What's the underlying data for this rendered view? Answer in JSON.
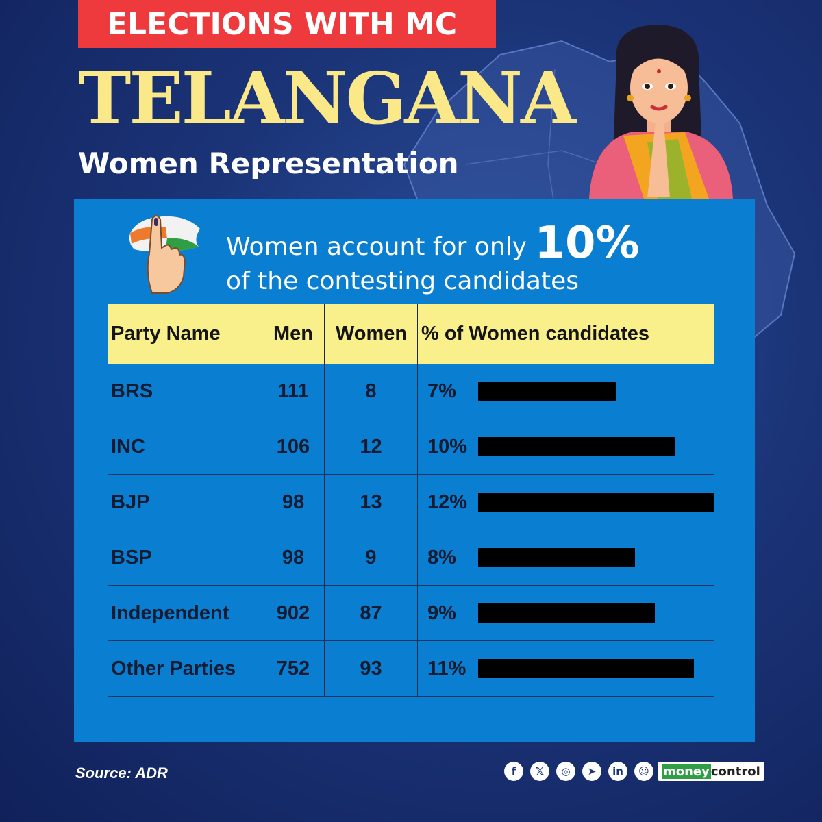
{
  "header": {
    "banner": "ELECTIONS WITH MC",
    "title": "TELANGANA",
    "subtitle": "Women Representation"
  },
  "headline": {
    "prefix": "Women account for only",
    "highlight": "10%",
    "suffix": "of the contesting candidates"
  },
  "table": {
    "columns": [
      "Party Name",
      "Men",
      "Women",
      "% of Women candidates"
    ],
    "rows": [
      {
        "party": "BRS",
        "men": "111",
        "women": "8",
        "pct_label": "7%"
      },
      {
        "party": "INC",
        "men": "106",
        "women": "12",
        "pct_label": "10%"
      },
      {
        "party": "BJP",
        "men": "98",
        "women": "13",
        "pct_label": "12%"
      },
      {
        "party": "BSP",
        "men": "98",
        "women": "9",
        "pct_label": "8%"
      },
      {
        "party": "Independent",
        "men": "902",
        "women": "87",
        "pct_label": "9%"
      },
      {
        "party": "Other Parties",
        "men": "752",
        "women": "93",
        "pct_label": "11%"
      }
    ]
  },
  "chart_data": {
    "type": "bar",
    "orientation": "horizontal",
    "categories": [
      "BRS",
      "INC",
      "BJP",
      "BSP",
      "Independent",
      "Other Parties"
    ],
    "values": [
      7,
      10,
      12,
      8,
      9,
      11
    ],
    "title": "% of Women candidates",
    "xlim": [
      0,
      12
    ],
    "bar_color": "#000000"
  },
  "footer": {
    "source": "Source: ADR",
    "brand_part1": "money",
    "brand_part2": "control",
    "social_icons": [
      "facebook-icon",
      "x-icon",
      "instagram-icon",
      "telegram-icon",
      "linkedin-icon",
      "snapchat-icon"
    ]
  },
  "colors": {
    "banner": "#ee3a3c",
    "title": "#fbe888",
    "panel": "#0a7ed0",
    "table_header": "#f9f08c"
  }
}
